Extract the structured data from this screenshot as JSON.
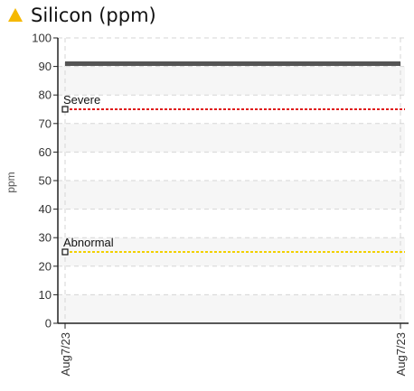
{
  "header": {
    "icon": "warning-triangle-icon",
    "icon_color": "#f5b800",
    "title": "Silicon (ppm)"
  },
  "chart_data": {
    "type": "line",
    "title": "Silicon (ppm)",
    "xlabel": "",
    "ylabel": "ppm",
    "x_ticks": [
      "Aug7/23",
      "Aug7/23"
    ],
    "y_ticks": [
      0,
      10,
      20,
      30,
      40,
      50,
      60,
      70,
      80,
      90,
      100
    ],
    "ylim": [
      0,
      100
    ],
    "grid": true,
    "series": [
      {
        "name": "",
        "x": [
          "Aug7/23",
          "Aug7/23"
        ],
        "values": [
          91,
          91
        ],
        "color": "#555555"
      }
    ],
    "reference_lines": [
      {
        "label": "Severe",
        "value": 75,
        "color": "#e01b1b"
      },
      {
        "label": "Abnormal",
        "value": 25,
        "color": "#f2d000"
      }
    ]
  }
}
